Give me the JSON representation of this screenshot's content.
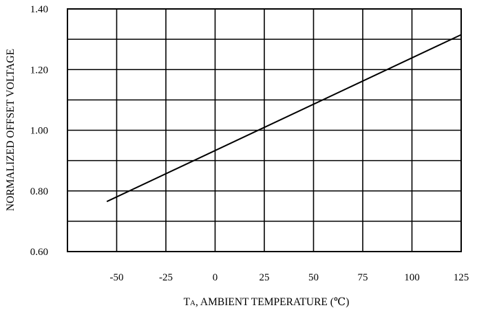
{
  "chart_data": {
    "type": "line",
    "title": "",
    "xlabel": "TA, AMBIENT TEMPERATURE (℃)",
    "xlabel_main": "T",
    "xlabel_subscript": "A",
    "xlabel_rest": ", AMBIENT TEMPERATURE (℃)",
    "ylabel": "NORMALIZED OFFSET VOLTAGE",
    "xlim": [
      -75,
      125
    ],
    "ylim": [
      0.6,
      1.4
    ],
    "grid": true,
    "x_ticks": [
      -50,
      -25,
      0,
      25,
      50,
      75,
      100,
      125
    ],
    "x_tick_labels": [
      "-50",
      "-25",
      "0",
      "25",
      "50",
      "75",
      "100",
      "125"
    ],
    "y_ticks": [
      0.6,
      0.8,
      1.0,
      1.2,
      1.4
    ],
    "y_tick_labels": [
      "0.60",
      "0.80",
      "1.00",
      "1.20",
      "1.40"
    ],
    "series": [
      {
        "x": [
          -55,
          125
        ],
        "y": [
          0.765,
          1.315
        ]
      }
    ]
  }
}
